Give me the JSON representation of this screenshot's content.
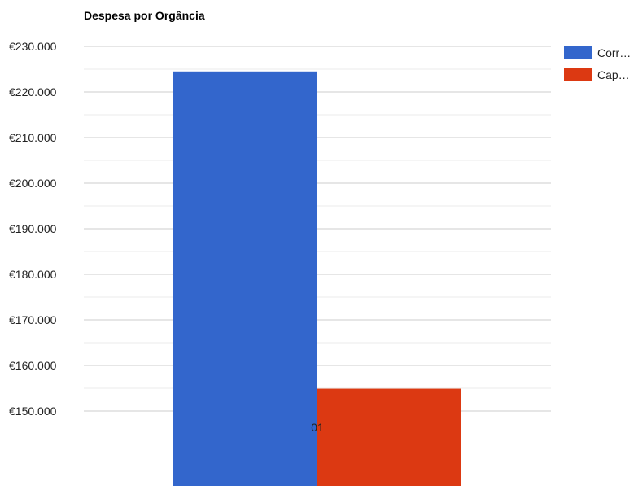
{
  "chart_data": {
    "type": "bar",
    "title": "Despesa por Orgância",
    "categories": [
      "01"
    ],
    "series": [
      {
        "name": "Corr…",
        "values": [
          224500
        ],
        "color": "#3366cc"
      },
      {
        "name": "Cap…",
        "values": [
          154900
        ],
        "color": "#dc3912"
      }
    ],
    "ylim": [
      150000,
      230000
    ],
    "yticks": [
      150000,
      160000,
      170000,
      180000,
      190000,
      200000,
      210000,
      220000,
      230000
    ],
    "ytick_labels": [
      "€150.000",
      "€160.000",
      "€170.000",
      "€180.000",
      "€190.000",
      "€200.000",
      "€210.000",
      "€220.000",
      "€230.000"
    ],
    "grid": true,
    "legend_position": "right"
  }
}
